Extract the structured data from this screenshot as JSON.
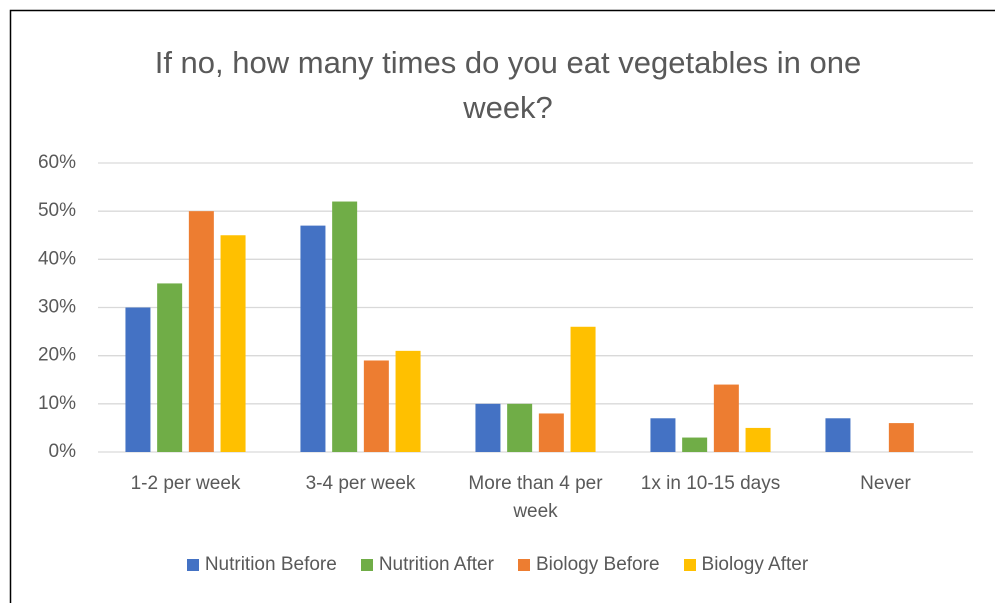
{
  "chart_data": {
    "type": "bar",
    "title": "If no, how many times do you eat vegetables in one week?",
    "categories": [
      "1-2 per week",
      "3-4 per week",
      "More than 4 per week",
      "1x in 10-15 days",
      "Never"
    ],
    "series": [
      {
        "name": "Nutrition Before",
        "color": "#4472c4",
        "values": [
          30,
          47,
          10,
          7,
          7
        ]
      },
      {
        "name": "Nutrition After",
        "color": "#70ad47",
        "values": [
          35,
          52,
          10,
          3,
          null
        ]
      },
      {
        "name": "Biology Before",
        "color": "#ed7d31",
        "values": [
          50,
          19,
          8,
          14,
          6
        ]
      },
      {
        "name": "Biology After",
        "color": "#ffc000",
        "values": [
          45,
          21,
          26,
          5,
          null
        ]
      }
    ],
    "ylim": [
      0,
      60
    ],
    "yticks": [
      {
        "value": 0,
        "label": "0%"
      },
      {
        "value": 10,
        "label": "10%"
      },
      {
        "value": 20,
        "label": "20%"
      },
      {
        "value": 30,
        "label": "30%"
      },
      {
        "value": 40,
        "label": "40%"
      },
      {
        "value": 50,
        "label": "50%"
      },
      {
        "value": 60,
        "label": "60%"
      }
    ],
    "grid": true,
    "legend": "bottom"
  }
}
